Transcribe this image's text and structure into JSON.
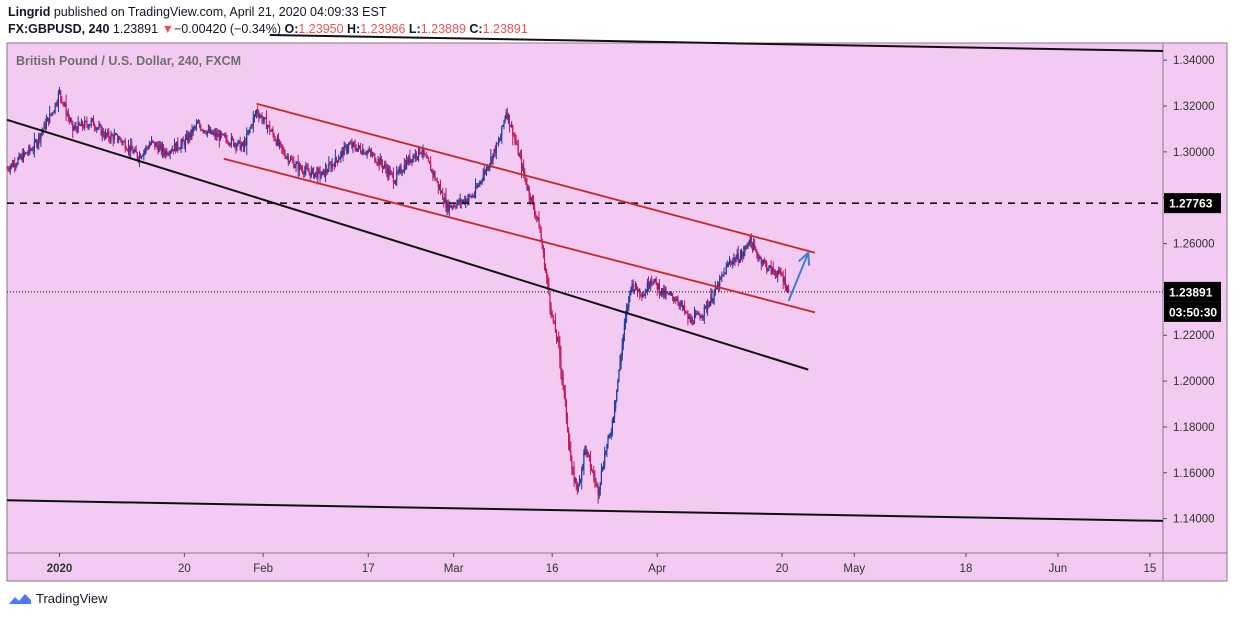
{
  "header": {
    "author": "Lingrid",
    "published": " published on TradingView.com, April 21, 2020 04:09:33 EST",
    "symbol": "FX:GBPUSD, 240",
    "last": "1.23891",
    "change_arrow": "▼",
    "change": "−0.00420 (−0.34%)",
    "o_label": "O:",
    "o_val": "1.23950",
    "h_label": "H:",
    "h_val": "1.23986",
    "l_label": "L:",
    "l_val": "1.23889",
    "c_label": "C:",
    "c_val": "1.23891"
  },
  "footer": {
    "brand": "TradingView",
    "logo_icon": "tradingview-logo-icon"
  },
  "colors": {
    "background": "#f2caf2",
    "candle_up": "#1f3d99",
    "candle_down": "#c2185b",
    "channel": "#c62828",
    "arrow": "#3d7fd6",
    "line": "#111111"
  },
  "chart_data": {
    "type": "candlestick",
    "title": "British Pound / U.S. Dollar, 240, FXCM",
    "ylim": [
      1.125,
      1.3475
    ],
    "xlim": [
      "2019-12-24",
      "2020-06-17"
    ],
    "y_ticks": [
      "1.34000",
      "1.32000",
      "1.30000",
      "1.28000",
      "1.26000",
      "1.24000",
      "1.22000",
      "1.20000",
      "1.18000",
      "1.16000",
      "1.14000"
    ],
    "x_ticks": [
      {
        "label": "2020",
        "date": "2020-01-01",
        "bold": true
      },
      {
        "label": "20",
        "date": "2020-01-20"
      },
      {
        "label": "Feb",
        "date": "2020-02-01"
      },
      {
        "label": "17",
        "date": "2020-02-17"
      },
      {
        "label": "Mar",
        "date": "2020-03-01"
      },
      {
        "label": "16",
        "date": "2020-03-16"
      },
      {
        "label": "Apr",
        "date": "2020-04-01"
      },
      {
        "label": "20",
        "date": "2020-04-20"
      },
      {
        "label": "May",
        "date": "2020-05-01"
      },
      {
        "label": "18",
        "date": "2020-05-18"
      },
      {
        "label": "Jun",
        "date": "2020-06-01"
      },
      {
        "label": "15",
        "date": "2020-06-15"
      }
    ],
    "path": [
      [
        "2019-12-24",
        1.293
      ],
      [
        "2019-12-26",
        1.297
      ],
      [
        "2019-12-28",
        1.302
      ],
      [
        "2019-12-31",
        1.318
      ],
      [
        "2020-01-01",
        1.326
      ],
      [
        "2020-01-03",
        1.31
      ],
      [
        "2020-01-06",
        1.313
      ],
      [
        "2020-01-08",
        1.307
      ],
      [
        "2020-01-10",
        1.306
      ],
      [
        "2020-01-13",
        1.298
      ],
      [
        "2020-01-15",
        1.304
      ],
      [
        "2020-01-17",
        1.3
      ],
      [
        "2020-01-20",
        1.304
      ],
      [
        "2020-01-22",
        1.312
      ],
      [
        "2020-01-24",
        1.308
      ],
      [
        "2020-01-27",
        1.305
      ],
      [
        "2020-01-29",
        1.302
      ],
      [
        "2020-01-31",
        1.318
      ],
      [
        "2020-02-02",
        1.31
      ],
      [
        "2020-02-04",
        1.3
      ],
      [
        "2020-02-06",
        1.294
      ],
      [
        "2020-02-08",
        1.291
      ],
      [
        "2020-02-10",
        1.29
      ],
      [
        "2020-02-12",
        1.296
      ],
      [
        "2020-02-14",
        1.303
      ],
      [
        "2020-02-17",
        1.3
      ],
      [
        "2020-02-19",
        1.295
      ],
      [
        "2020-02-21",
        1.288
      ],
      [
        "2020-02-23",
        1.296
      ],
      [
        "2020-02-25",
        1.301
      ],
      [
        "2020-02-27",
        1.29
      ],
      [
        "2020-02-29",
        1.276
      ],
      [
        "2020-03-02",
        1.278
      ],
      [
        "2020-03-04",
        1.281
      ],
      [
        "2020-03-06",
        1.293
      ],
      [
        "2020-03-08",
        1.305
      ],
      [
        "2020-03-09",
        1.318
      ],
      [
        "2020-03-10",
        1.309
      ],
      [
        "2020-03-12",
        1.287
      ],
      [
        "2020-03-14",
        1.268
      ],
      [
        "2020-03-16",
        1.228
      ],
      [
        "2020-03-17",
        1.215
      ],
      [
        "2020-03-18",
        1.19
      ],
      [
        "2020-03-19",
        1.16
      ],
      [
        "2020-03-20",
        1.153
      ],
      [
        "2020-03-21",
        1.171
      ],
      [
        "2020-03-23",
        1.152
      ],
      [
        "2020-03-24",
        1.168
      ],
      [
        "2020-03-25",
        1.179
      ],
      [
        "2020-03-26",
        1.2
      ],
      [
        "2020-03-27",
        1.224
      ],
      [
        "2020-03-28",
        1.242
      ],
      [
        "2020-03-30",
        1.238
      ],
      [
        "2020-03-31",
        1.245
      ],
      [
        "2020-04-02",
        1.238
      ],
      [
        "2020-04-04",
        1.236
      ],
      [
        "2020-04-06",
        1.226
      ],
      [
        "2020-04-08",
        1.23
      ],
      [
        "2020-04-10",
        1.24
      ],
      [
        "2020-04-12",
        1.252
      ],
      [
        "2020-04-14",
        1.255
      ],
      [
        "2020-04-15",
        1.262
      ],
      [
        "2020-04-16",
        1.256
      ],
      [
        "2020-04-18",
        1.249
      ],
      [
        "2020-04-20",
        1.246
      ],
      [
        "2020-04-21",
        1.239
      ]
    ],
    "last_price": 1.23891,
    "last_price_label": "1.23891",
    "countdown_label": "03:50:30",
    "level": {
      "value": 1.27763,
      "label": "1.27763",
      "style": "dashed"
    },
    "lines": [
      {
        "name": "channel-upper",
        "color": "channel",
        "from": [
          "2020-01-31",
          1.321
        ],
        "to": [
          "2020-04-25",
          1.256
        ]
      },
      {
        "name": "channel-lower",
        "color": "channel",
        "from": [
          "2020-01-26",
          1.297
        ],
        "to": [
          "2020-04-25",
          1.23
        ]
      },
      {
        "name": "support-trendline",
        "color": "line",
        "from": [
          "2019-12-24",
          1.314
        ],
        "to": [
          "2020-04-24",
          1.205
        ]
      },
      {
        "name": "upper-boundary",
        "color": "line",
        "from": [
          "2020-02-02",
          1.351
        ],
        "to": [
          "2020-06-17",
          1.344
        ]
      },
      {
        "name": "lower-boundary",
        "color": "line",
        "from": [
          "2019-12-24",
          1.148
        ],
        "to": [
          "2020-06-17",
          1.139
        ]
      }
    ],
    "arrow": {
      "from": [
        "2020-04-21",
        1.235
      ],
      "to": [
        "2020-04-24",
        1.256
      ]
    }
  }
}
